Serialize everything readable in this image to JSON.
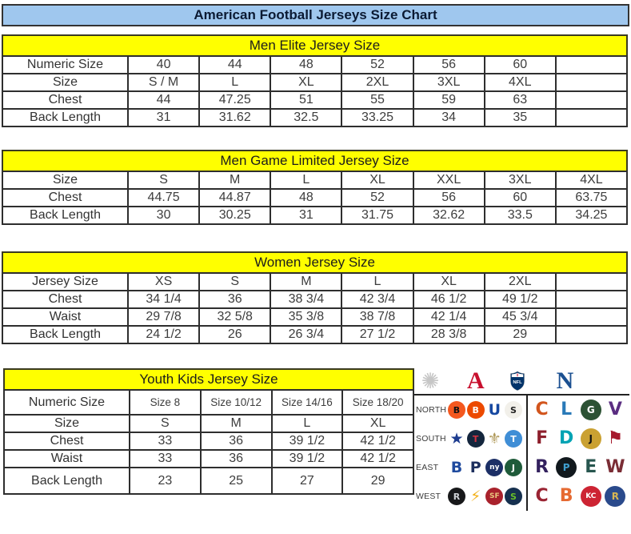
{
  "title": "American Football Jerseys Size Chart",
  "tables": [
    {
      "header": "Men Elite Jersey Size",
      "rows": [
        {
          "label": "Numeric Size",
          "cells": [
            "40",
            "44",
            "48",
            "52",
            "56",
            "60",
            ""
          ]
        },
        {
          "label": "Size",
          "cells": [
            "S / M",
            "L",
            "XL",
            "2XL",
            "3XL",
            "4XL",
            ""
          ]
        },
        {
          "label": "Chest",
          "cells": [
            "44",
            "47.25",
            "51",
            "55",
            "59",
            "63",
            ""
          ]
        },
        {
          "label": "Back Length",
          "cells": [
            "31",
            "31.62",
            "32.5",
            "33.25",
            "34",
            "35",
            ""
          ]
        }
      ]
    },
    {
      "header": "Men Game Limited Jersey Size",
      "rows": [
        {
          "label": "Size",
          "cells": [
            "S",
            "M",
            "L",
            "XL",
            "XXL",
            "3XL",
            "4XL"
          ]
        },
        {
          "label": "Chest",
          "cells": [
            "44.75",
            "44.87",
            "48",
            "52",
            "56",
            "60",
            "63.75"
          ]
        },
        {
          "label": "Back Length",
          "cells": [
            "30",
            "30.25",
            "31",
            "31.75",
            "32.62",
            "33.5",
            "34.25"
          ]
        }
      ]
    },
    {
      "header": "Women Jersey Size",
      "rows": [
        {
          "label": "Jersey Size",
          "cells": [
            "XS",
            "S",
            "M",
            "L",
            "XL",
            "2XL",
            ""
          ]
        },
        {
          "label": "Chest",
          "cells": [
            "34 1/4",
            "36",
            "38 3/4",
            "42 3/4",
            "46 1/2",
            "49 1/2",
            ""
          ]
        },
        {
          "label": "Waist",
          "cells": [
            "29 7/8",
            "32 5/8",
            "35 3/8",
            "38 7/8",
            "42 1/4",
            "45 3/4",
            ""
          ]
        },
        {
          "label": "Back Length",
          "cells": [
            "24 1/2",
            "26",
            "26 3/4",
            "27 1/2",
            "28 3/8",
            "29",
            ""
          ]
        }
      ]
    },
    {
      "header": "Youth Kids Jersey Size",
      "rows": [
        {
          "label": "Numeric Size",
          "small": true,
          "cells": [
            "Size 8",
            "Size 10/12",
            "Size 14/16",
            "Size 18/20"
          ]
        },
        {
          "label": "Size",
          "cells": [
            "S",
            "M",
            "L",
            "XL"
          ]
        },
        {
          "label": "Chest",
          "cells": [
            "33",
            "36",
            "39 1/2",
            "42 1/2"
          ]
        },
        {
          "label": "Waist",
          "cells": [
            "33",
            "36",
            "39 1/2",
            "42 1/2"
          ]
        },
        {
          "label": "Back Length",
          "cells": [
            "23",
            "25",
            "27",
            "29"
          ]
        }
      ]
    }
  ],
  "logos_panel": {
    "starburst_glyph": "✺",
    "afc_letter": "A",
    "nfl_label": "NFL",
    "nfc_letter": "N",
    "divisions": [
      {
        "label": "NORTH",
        "afc": [
          {
            "name": "bengals",
            "glyph": "B",
            "bg": "#f4581f",
            "fg": "#111111"
          },
          {
            "name": "browns",
            "glyph": "B",
            "bg": "#ec4a00",
            "fg": "#ffffff"
          },
          {
            "name": "colts",
            "glyph": "U",
            "bg": "#ffffff",
            "fg": "#1648a0"
          },
          {
            "name": "steelers",
            "glyph": "S",
            "bg": "#f2f0ea",
            "fg": "#222222"
          }
        ],
        "nfc": [
          {
            "name": "bears",
            "glyph": "C",
            "bg": "#ffffff",
            "fg": "#d2551d"
          },
          {
            "name": "lions",
            "glyph": "L",
            "bg": "#ffffff",
            "fg": "#2a7ab8"
          },
          {
            "name": "packers",
            "glyph": "G",
            "bg": "#2c5234",
            "fg": "#ffffff"
          },
          {
            "name": "vikings",
            "glyph": "V",
            "bg": "#ffffff",
            "fg": "#5a2d81"
          }
        ]
      },
      {
        "label": "SOUTH",
        "afc": [
          {
            "name": "cowboys",
            "glyph": "★",
            "bg": "#ffffff",
            "fg": "#1d3c8f"
          },
          {
            "name": "texans",
            "glyph": "T",
            "bg": "#14263d",
            "fg": "#d13341"
          },
          {
            "name": "saints",
            "glyph": "⚜",
            "bg": "#ffffff",
            "fg": "#b09a5b"
          },
          {
            "name": "titans",
            "glyph": "T",
            "bg": "#3f8ed6",
            "fg": "#ffffff"
          }
        ],
        "nfc": [
          {
            "name": "falcons",
            "glyph": "F",
            "bg": "#ffffff",
            "fg": "#8d1f2c"
          },
          {
            "name": "dolphins",
            "glyph": "D",
            "bg": "#ffffff",
            "fg": "#00a3b4"
          },
          {
            "name": "jaguars",
            "glyph": "J",
            "bg": "#caa132",
            "fg": "#111111"
          },
          {
            "name": "buccaneers",
            "glyph": "⚑",
            "bg": "#ffffff",
            "fg": "#a6192e"
          }
        ]
      },
      {
        "label": "EAST",
        "afc": [
          {
            "name": "bills",
            "glyph": "B",
            "bg": "#ffffff",
            "fg": "#1f4a9e"
          },
          {
            "name": "patriots",
            "glyph": "P",
            "bg": "#ffffff",
            "fg": "#1d2f5e"
          },
          {
            "name": "giants",
            "glyph": "ny",
            "bg": "#1c2f66",
            "fg": "#ffffff"
          },
          {
            "name": "jets",
            "glyph": "J",
            "bg": "#1f5b3a",
            "fg": "#ffffff"
          }
        ],
        "nfc": [
          {
            "name": "ravens",
            "glyph": "R",
            "bg": "#ffffff",
            "fg": "#33215e"
          },
          {
            "name": "panthers",
            "glyph": "P",
            "bg": "#11181d",
            "fg": "#3f9fd0"
          },
          {
            "name": "eagles",
            "glyph": "E",
            "bg": "#ffffff",
            "fg": "#27564f"
          },
          {
            "name": "redskins",
            "glyph": "W",
            "bg": "#ffffff",
            "fg": "#7a2d35"
          }
        ]
      },
      {
        "label": "WEST",
        "afc": [
          {
            "name": "raiders",
            "glyph": "R",
            "bg": "#17181a",
            "fg": "#cfd2d6"
          },
          {
            "name": "chargers",
            "glyph": "⚡",
            "bg": "#ffffff",
            "fg": "#f2b11c"
          },
          {
            "name": "49ers",
            "glyph": "SF",
            "bg": "#a9222c",
            "fg": "#e9c57d"
          },
          {
            "name": "seahawks",
            "glyph": "S",
            "bg": "#16304f",
            "fg": "#69be28"
          }
        ],
        "nfc": [
          {
            "name": "cardinals",
            "glyph": "C",
            "bg": "#ffffff",
            "fg": "#9a2433"
          },
          {
            "name": "broncos",
            "glyph": "B",
            "bg": "#ffffff",
            "fg": "#e66a32"
          },
          {
            "name": "chiefs",
            "glyph": "KC",
            "bg": "#cd2433",
            "fg": "#ffffff"
          },
          {
            "name": "rams",
            "glyph": "R",
            "bg": "#2a4a8c",
            "fg": "#d8b653"
          }
        ]
      }
    ]
  },
  "colors": {
    "title_bar_bg": "#9fc7ee",
    "section_header_bg": "#ffff00",
    "table_border": "#2e2e2e",
    "afc_red": "#c8102e",
    "nfc_blue": "#1b5091",
    "nfl_shield_blue": "#013369"
  }
}
